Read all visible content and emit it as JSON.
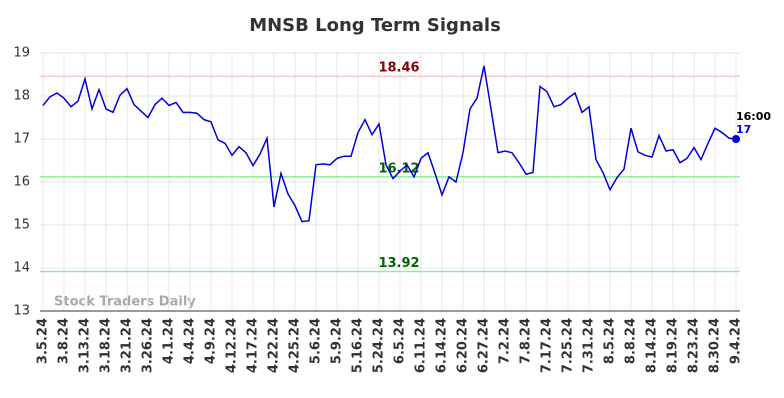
{
  "chart_data": {
    "type": "line",
    "title": "MNSB Long Term Signals",
    "watermark": "Stock Traders Daily",
    "categories": [
      "3.5.24",
      null,
      null,
      "3.8.24",
      null,
      null,
      "3.13.24",
      null,
      null,
      "3.18.24",
      null,
      null,
      "3.21.24",
      null,
      null,
      "3.26.24",
      null,
      null,
      "4.1.24",
      null,
      null,
      "4.4.24",
      null,
      null,
      "4.9.24",
      null,
      null,
      "4.12.24",
      null,
      null,
      "4.17.24",
      null,
      null,
      "4.22.24",
      null,
      null,
      "4.25.24",
      null,
      null,
      "5.6.24",
      null,
      null,
      "5.9.24",
      null,
      null,
      "5.16.24",
      null,
      null,
      "5.24.24",
      null,
      null,
      "6.5.24",
      null,
      null,
      "6.11.24",
      null,
      null,
      "6.14.24",
      null,
      null,
      "6.20.24",
      null,
      null,
      "6.27.24",
      null,
      null,
      "7.2.24",
      null,
      null,
      "7.8.24",
      null,
      null,
      "7.17.24",
      null,
      null,
      "7.25.24",
      null,
      null,
      "7.31.24",
      null,
      null,
      "8.5.24",
      null,
      null,
      "8.8.24",
      null,
      null,
      "8.14.24",
      null,
      null,
      "8.19.24",
      null,
      null,
      "8.23.24",
      null,
      null,
      "8.30.24",
      null,
      null,
      "9.4.24"
    ],
    "values": [
      17.78,
      17.98,
      18.07,
      17.95,
      17.75,
      17.88,
      18.4,
      17.7,
      18.15,
      17.7,
      17.62,
      18.02,
      18.17,
      17.8,
      17.65,
      17.5,
      17.8,
      17.95,
      17.78,
      17.85,
      17.62,
      17.62,
      17.6,
      17.45,
      17.4,
      16.98,
      16.9,
      16.62,
      16.82,
      16.68,
      16.38,
      16.65,
      17.02,
      15.42,
      16.2,
      15.72,
      15.45,
      15.08,
      15.1,
      16.4,
      16.42,
      16.4,
      16.55,
      16.6,
      16.6,
      17.15,
      17.45,
      17.1,
      17.35,
      16.4,
      16.08,
      16.25,
      16.4,
      16.12,
      16.55,
      16.68,
      16.2,
      15.7,
      16.12,
      16.0,
      16.68,
      17.7,
      17.95,
      18.7,
      17.7,
      16.68,
      16.72,
      16.68,
      16.45,
      16.18,
      16.22,
      18.22,
      18.1,
      17.75,
      17.8,
      17.95,
      18.07,
      17.62,
      17.75,
      16.52,
      16.22,
      15.82,
      16.1,
      16.3,
      17.25,
      16.7,
      16.62,
      16.58,
      17.08,
      16.72,
      16.75,
      16.45,
      16.55,
      16.8,
      16.52,
      16.9,
      17.25,
      17.15,
      17.02,
      17.0
    ],
    "color": "#0000dd",
    "last_time": "16:00",
    "ylim": [
      13,
      19
    ],
    "yticks": [
      13,
      14,
      15,
      16,
      17,
      18,
      19
    ],
    "grid": true,
    "hlines": [
      {
        "value": 18.46,
        "color": "#ffc8c8",
        "label_color": "#8b0000"
      },
      {
        "value": 16.12,
        "color": "#90ee90",
        "label_color": "#006400"
      },
      {
        "value": 13.92,
        "color": "#90ee90",
        "label_color": "#006400"
      }
    ]
  }
}
